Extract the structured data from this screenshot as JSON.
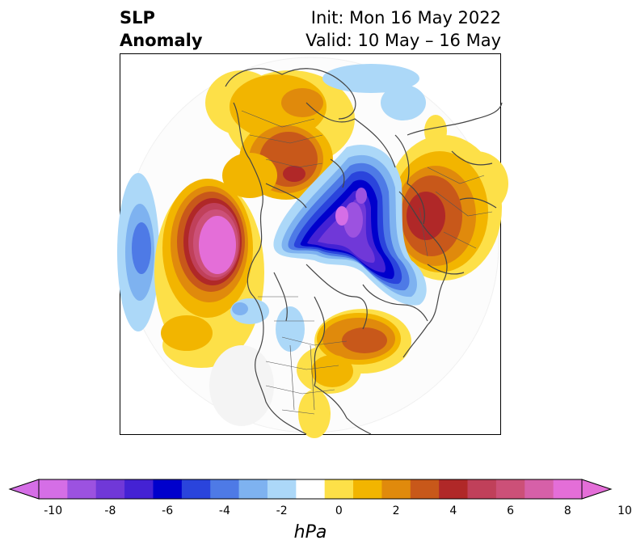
{
  "header": {
    "title_line1": "SLP",
    "title_line2": "Anomaly",
    "init_line": "Init: Mon 16 May 2022",
    "valid_line": "Valid: 10 May – 16 May"
  },
  "colorbar": {
    "unit": "hPa",
    "ticks": [
      "-10",
      "-8",
      "-6",
      "-4",
      "-2",
      "0",
      "2",
      "4",
      "6",
      "8",
      "10"
    ],
    "colors": [
      "#d56ee6",
      "#9c52e0",
      "#7038d8",
      "#4422d4",
      "#0000cc",
      "#2a44dc",
      "#4e7ae6",
      "#7eb2f0",
      "#acd8f8",
      "#ffffff",
      "#fde048",
      "#f2b500",
      "#e08a0c",
      "#c8581a",
      "#b02828",
      "#c0405a",
      "#cc5078",
      "#d660a8",
      "#e46ed8"
    ],
    "extend_low_color": "#d56ee6",
    "extend_high_color": "#e46ed8"
  },
  "map": {
    "projection": "north-polar-stereographic",
    "field": "sea-level-pressure-anomaly"
  }
}
